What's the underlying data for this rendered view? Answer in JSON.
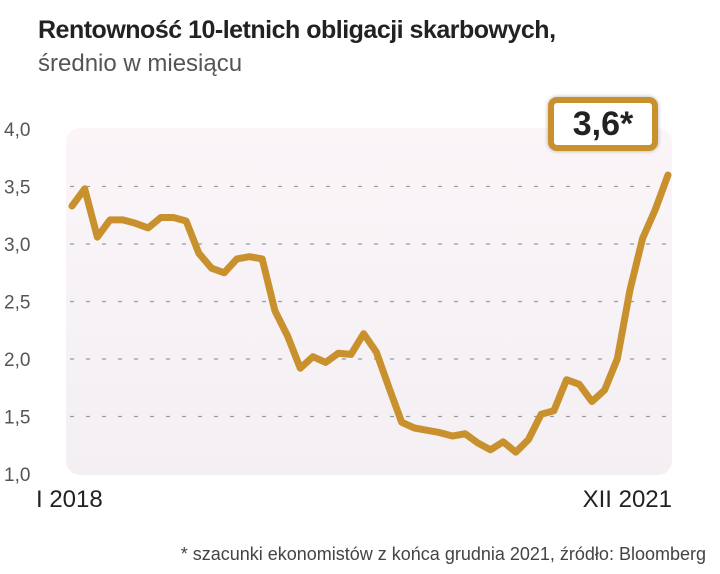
{
  "title": "Rentowność 10-letnich obligacji skarbowych,",
  "subtitle": "średnio w miesiącu",
  "footnote": "* szacunki ekonomistów z końca grudnia 2021, źródło: Bloomberg",
  "callout": "3,6*",
  "chart_data": {
    "type": "line",
    "title": "Rentowność 10-letnich obligacji skarbowych, średnio w miesiącu",
    "x_start": "I 2018",
    "x_end": "XII 2021",
    "x_tick_labels": [
      "I 2018",
      "XII 2021"
    ],
    "ylim": [
      1.0,
      4.0
    ],
    "y_ticks": [
      1.0,
      1.5,
      2.0,
      2.5,
      3.0,
      3.5,
      4.0
    ],
    "y_tick_labels": [
      "1,0",
      "1,5",
      "2,0",
      "2,5",
      "3,0",
      "3,5",
      "4,0"
    ],
    "grid": "horizontal dashed",
    "line_color": "#c9912e",
    "values": [
      3.33,
      3.48,
      3.06,
      3.21,
      3.21,
      3.18,
      3.14,
      3.23,
      3.23,
      3.2,
      2.92,
      2.79,
      2.75,
      2.87,
      2.89,
      2.87,
      2.42,
      2.2,
      1.92,
      2.02,
      1.97,
      2.05,
      2.04,
      2.22,
      2.06,
      1.75,
      1.45,
      1.4,
      1.38,
      1.36,
      1.33,
      1.35,
      1.27,
      1.21,
      1.28,
      1.19,
      1.3,
      1.52,
      1.55,
      1.82,
      1.78,
      1.63,
      1.73,
      2.0,
      2.6,
      3.05,
      3.3,
      3.6
    ]
  }
}
